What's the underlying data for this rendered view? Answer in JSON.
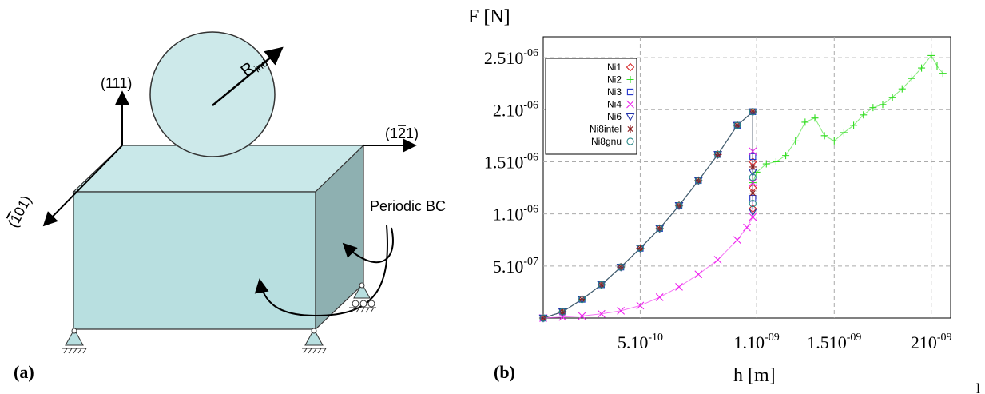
{
  "panel_a": {
    "label": "(a)",
    "radius_label_main": "R",
    "radius_label_sub": "ind",
    "axis_111": "(111)",
    "axis_121_open": "(1",
    "axis_121_bar": "2",
    "axis_121_close": "1)",
    "axis_101_open": "(",
    "axis_101_bar": "1",
    "axis_101_close": "01)",
    "periodic_bc": "Periodic BC",
    "colors": {
      "block_front": "#b8dfe0",
      "block_top": "#c9e8e9",
      "block_side": "#8eb0b1",
      "sphere": "#cde9ea",
      "edge": "#333333"
    }
  },
  "panel_b": {
    "label": "(b)",
    "ylabel": "F [N]",
    "xlabel": "h [m]",
    "edge_mark": "l"
  },
  "chart_data": {
    "type": "scatter",
    "xlabel": "h [m]",
    "ylabel": "F [N]",
    "xlim": [
      0,
      2.1e-09
    ],
    "ylim": [
      0,
      2.7e-06
    ],
    "grid": true,
    "legend_position": "top-left",
    "x_ticks": [
      {
        "value": 5e-10,
        "base": "5.10",
        "exp": "-10"
      },
      {
        "value": 1.1e-09,
        "base": "1.10",
        "exp": "-09"
      },
      {
        "value": 1.5e-09,
        "base": "1.510",
        "exp": "-09"
      },
      {
        "value": 2e-09,
        "base": "210",
        "exp": "-09"
      }
    ],
    "y_ticks": [
      {
        "value": 5e-07,
        "base": "5.10",
        "exp": "-07"
      },
      {
        "value": 1e-06,
        "base": "1.10",
        "exp": "-06"
      },
      {
        "value": 1.5e-06,
        "base": "1.510",
        "exp": "-06"
      },
      {
        "value": 2e-06,
        "base": "2.10",
        "exp": "-06"
      },
      {
        "value": 2.5e-06,
        "base": "2.510",
        "exp": "-06"
      }
    ],
    "series": [
      {
        "name": "Ni1",
        "marker": "diamond",
        "color": "#d62728",
        "x": [
          0,
          1e-10,
          2e-10,
          3e-10,
          4e-10,
          5e-10,
          6e-10,
          7e-10,
          8e-10,
          9e-10,
          1e-09,
          1.08e-09,
          1.08e-09,
          1.08e-09,
          1.08e-09
        ],
        "y": [
          0,
          6e-08,
          1.8e-07,
          3.2e-07,
          4.9e-07,
          6.7e-07,
          8.6e-07,
          1.08e-06,
          1.32e-06,
          1.57e-06,
          1.85e-06,
          1.98e-06,
          1.5e-06,
          1.25e-06,
          1.05e-06
        ]
      },
      {
        "name": "Ni2",
        "marker": "plus",
        "color": "#33dd22",
        "x": [
          0,
          1e-10,
          2e-10,
          3e-10,
          4e-10,
          5e-10,
          6e-10,
          7e-10,
          8e-10,
          9e-10,
          1e-09,
          1.08e-09,
          1.08e-09,
          1.1e-09,
          1.15e-09,
          1.2e-09,
          1.25e-09,
          1.3e-09,
          1.35e-09,
          1.4e-09,
          1.45e-09,
          1.5e-09,
          1.55e-09,
          1.6e-09,
          1.65e-09,
          1.7e-09,
          1.75e-09,
          1.8e-09,
          1.85e-09,
          1.9e-09,
          1.95e-09,
          2e-09,
          2.03e-09,
          2.06e-09
        ],
        "y": [
          0,
          6e-08,
          1.8e-07,
          3.2e-07,
          4.9e-07,
          6.7e-07,
          8.6e-07,
          1.08e-06,
          1.32e-06,
          1.57e-06,
          1.85e-06,
          1.98e-06,
          1.3e-06,
          1.4e-06,
          1.48e-06,
          1.5e-06,
          1.56e-06,
          1.7e-06,
          1.88e-06,
          1.92e-06,
          1.75e-06,
          1.7e-06,
          1.78e-06,
          1.85e-06,
          1.95e-06,
          2.02e-06,
          2.05e-06,
          2.12e-06,
          2.2e-06,
          2.3e-06,
          2.4e-06,
          2.52e-06,
          2.42e-06,
          2.35e-06
        ]
      },
      {
        "name": "Ni3",
        "marker": "square",
        "color": "#2233cc",
        "x": [
          0,
          1e-10,
          2e-10,
          3e-10,
          4e-10,
          5e-10,
          6e-10,
          7e-10,
          8e-10,
          9e-10,
          1e-09,
          1.08e-09,
          1.08e-09,
          1.08e-09
        ],
        "y": [
          0,
          6e-08,
          1.8e-07,
          3.2e-07,
          4.9e-07,
          6.7e-07,
          8.6e-07,
          1.08e-06,
          1.32e-06,
          1.57e-06,
          1.85e-06,
          1.98e-06,
          1.55e-06,
          1.15e-06
        ]
      },
      {
        "name": "Ni4",
        "marker": "x",
        "color": "#ee22ee",
        "x": [
          0,
          1e-10,
          2e-10,
          3e-10,
          4e-10,
          5e-10,
          6e-10,
          7e-10,
          8e-10,
          9e-10,
          1e-09,
          1.05e-09,
          1.08e-09,
          1.08e-09,
          1.08e-09
        ],
        "y": [
          0,
          1e-08,
          2e-08,
          4e-08,
          7e-08,
          1.2e-07,
          2e-07,
          3e-07,
          4.2e-07,
          5.6e-07,
          7.5e-07,
          8.7e-07,
          9.7e-07,
          1.3e-06,
          1.6e-06
        ]
      },
      {
        "name": "Ni6",
        "marker": "triangle-down",
        "color": "#2233aa",
        "x": [
          0,
          1e-10,
          2e-10,
          3e-10,
          4e-10,
          5e-10,
          6e-10,
          7e-10,
          8e-10,
          9e-10,
          1e-09,
          1.08e-09,
          1.08e-09,
          1.08e-09
        ],
        "y": [
          0,
          6e-08,
          1.8e-07,
          3.2e-07,
          4.9e-07,
          6.7e-07,
          8.6e-07,
          1.08e-06,
          1.32e-06,
          1.57e-06,
          1.85e-06,
          1.98e-06,
          1.4e-06,
          1.02e-06
        ]
      },
      {
        "name": "Ni8intel",
        "marker": "star",
        "color": "#8b1a1a",
        "x": [
          0,
          1e-10,
          2e-10,
          3e-10,
          4e-10,
          5e-10,
          6e-10,
          7e-10,
          8e-10,
          9e-10,
          1e-09,
          1.08e-09,
          1.08e-09,
          1.08e-09
        ],
        "y": [
          0,
          6e-08,
          1.8e-07,
          3.2e-07,
          4.9e-07,
          6.7e-07,
          8.6e-07,
          1.08e-06,
          1.32e-06,
          1.57e-06,
          1.85e-06,
          1.98e-06,
          1.45e-06,
          1.2e-06
        ]
      },
      {
        "name": "Ni8gnu",
        "marker": "circle",
        "color": "#2a8a8a",
        "x": [
          0,
          1e-10,
          2e-10,
          3e-10,
          4e-10,
          5e-10,
          6e-10,
          7e-10,
          8e-10,
          9e-10,
          1e-09,
          1.08e-09,
          1.08e-09,
          1.08e-09
        ],
        "y": [
          0,
          6e-08,
          1.8e-07,
          3.2e-07,
          4.9e-07,
          6.7e-07,
          8.6e-07,
          1.08e-06,
          1.32e-06,
          1.57e-06,
          1.85e-06,
          1.98e-06,
          1.35e-06,
          1.1e-06
        ]
      }
    ]
  }
}
